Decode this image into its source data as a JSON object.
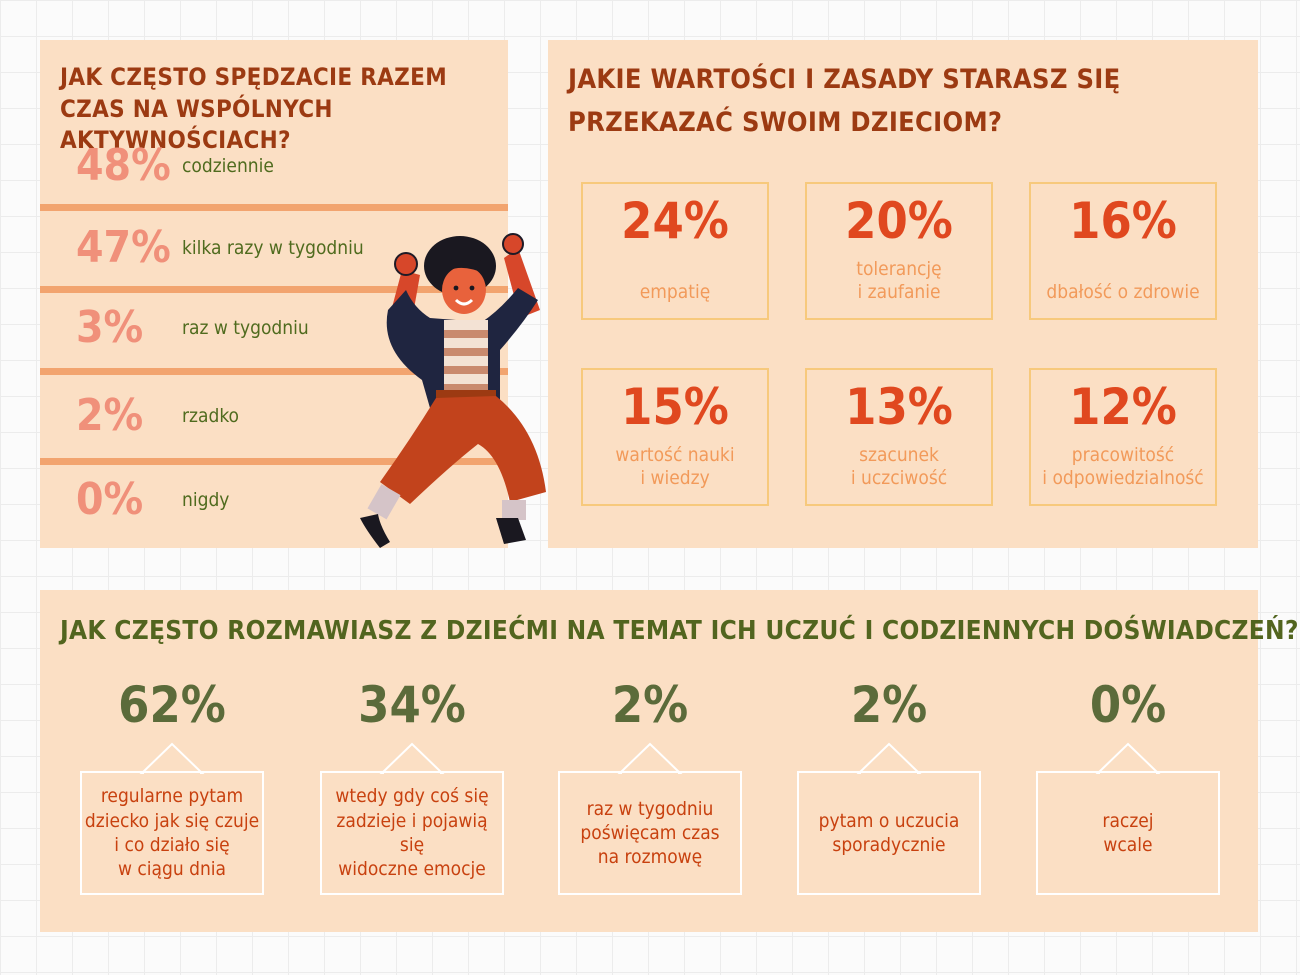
{
  "panel_frequency": {
    "title": "JAK CZĘSTO SPĘDZACIE RAZEM CZAS NA WSPÓLNYCH AKTYWNOŚCIACH?",
    "items": [
      {
        "percent": "48%",
        "label": "codziennie"
      },
      {
        "percent": "47%",
        "label": "kilka razy w tygodniu"
      },
      {
        "percent": "3%",
        "label": "raz w tygodniu"
      },
      {
        "percent": "2%",
        "label": "rzadko"
      },
      {
        "percent": "0%",
        "label": "nigdy"
      }
    ]
  },
  "panel_values": {
    "title": "JAKIE WARTOŚCI I ZASADY STARASZ SIĘ PRZEKAZAĆ SWOIM DZIECIOM?",
    "items": [
      {
        "percent": "24%",
        "label": "empatię"
      },
      {
        "percent": "20%",
        "label": "tolerancję\ni zaufanie"
      },
      {
        "percent": "16%",
        "label": "dbałość o zdrowie"
      },
      {
        "percent": "15%",
        "label": "wartość nauki\ni wiedzy"
      },
      {
        "percent": "13%",
        "label": "szacunek\ni uczciwość"
      },
      {
        "percent": "12%",
        "label": "pracowitość\ni odpowiedzialność"
      }
    ]
  },
  "panel_talk": {
    "title": "JAK CZĘSTO ROZMAWIASZ Z DZIEĆMI NA TEMAT ICH UCZUĆ I CODZIENNYCH DOŚWIADCZEŃ?",
    "items": [
      {
        "percent": "62%",
        "label": "regularne pytam\ndziecko jak się czuje\ni co działo się\nw ciągu dnia"
      },
      {
        "percent": "34%",
        "label": "wtedy gdy coś się\nzadzieje i pojawią się\nwidoczne emocje"
      },
      {
        "percent": "2%",
        "label": "raz w tygodniu\npoświęcam czas\nna rozmowę"
      },
      {
        "percent": "2%",
        "label": "pytam o uczucia\nsporadycznie"
      },
      {
        "percent": "0%",
        "label": "raczej\nwcale"
      }
    ]
  },
  "colors": {
    "panel_bg": "#fbdfc4",
    "title_red": "#9c3a12",
    "title_green": "#52651f",
    "pct_salmon": "#f0907a",
    "pct_red": "#e0481f",
    "pct_green": "#5b6b3a",
    "divider": "#f2a46f"
  },
  "illustration": "jumping-person-illustration",
  "chart_data": [
    {
      "type": "bar",
      "title": "JAK CZĘSTO SPĘDZACIE RAZEM CZAS NA WSPÓLNYCH AKTYWNOŚCIACH?",
      "categories": [
        "codziennie",
        "kilka razy w tygodniu",
        "raz w tygodniu",
        "rzadko",
        "nigdy"
      ],
      "values": [
        48,
        47,
        3,
        2,
        0
      ]
    },
    {
      "type": "table",
      "title": "JAKIE WARTOŚCI I ZASADY STARASZ SIĘ PRZEKAZAĆ SWOIM DZIECIOM?",
      "categories": [
        "empatię",
        "tolerancję i zaufanie",
        "dbałość o zdrowie",
        "wartość nauki i wiedzy",
        "szacunek i uczciwość",
        "pracowitość i odpowiedzialność"
      ],
      "values": [
        24,
        20,
        16,
        15,
        13,
        12
      ]
    },
    {
      "type": "table",
      "title": "JAK CZĘSTO ROZMAWIASZ Z DZIEĆMI NA TEMAT ICH UCZUĆ I CODZIENNYCH DOŚWIADCZEŃ?",
      "categories": [
        "regularne pytam dziecko jak się czuje i co działo się w ciągu dnia",
        "wtedy gdy coś się zadzieje i pojawią się widoczne emocje",
        "raz w tygodniu poświęcam czas na rozmowę",
        "pytam o uczucia sporadycznie",
        "raczej wcale"
      ],
      "values": [
        62,
        34,
        2,
        2,
        0
      ]
    }
  ]
}
